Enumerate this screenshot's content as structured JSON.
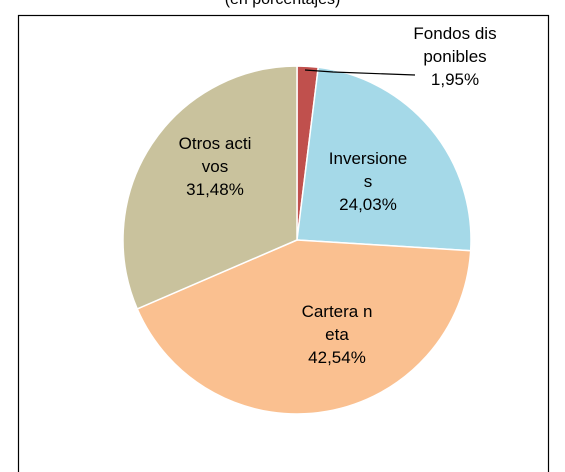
{
  "chart_data": {
    "type": "pie",
    "subtitle": "(en porcentajes)",
    "categories": [
      "Fondos disponibles",
      "Inversiones",
      "Cartera neta",
      "Otros activos"
    ],
    "values": [
      1.95,
      24.03,
      42.54,
      31.48
    ],
    "value_labels": [
      "1,95%",
      "24,03%",
      "42,54%",
      "31,48%"
    ],
    "colors": [
      "#c0504d",
      "#a5d9e8",
      "#fac090",
      "#c9c29d"
    ]
  }
}
